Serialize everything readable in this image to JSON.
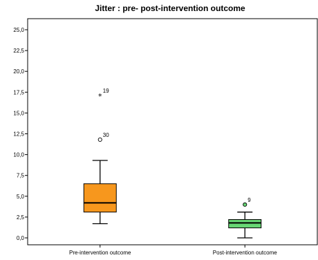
{
  "chart_data": {
    "type": "box",
    "title": "Jitter : pre- post-intervention outcome",
    "xlabel": "",
    "ylabel": "",
    "ylim": [
      0,
      25
    ],
    "y_ticks": [
      "0,0",
      "2,5",
      "5,0",
      "7,5",
      "10,0",
      "12,5",
      "15,0",
      "17,5",
      "20,0",
      "22,5",
      "25,0"
    ],
    "categories": [
      "Pre-intervention outcome",
      "Post-intervention outcome"
    ],
    "boxes": [
      {
        "category": "Pre-intervention outcome",
        "whisker_low": 1.7,
        "q1": 3.1,
        "median": 4.2,
        "q3": 6.5,
        "whisker_high": 9.3,
        "color": "#f7971d",
        "outliers": [
          {
            "value": 11.8,
            "label": "30",
            "marker": "circle"
          },
          {
            "value": 17.1,
            "label": "19",
            "marker": "star"
          }
        ]
      },
      {
        "category": "Post-intervention outcome",
        "whisker_low": 0.0,
        "q1": 1.2,
        "median": 1.8,
        "q3": 2.2,
        "whisker_high": 3.1,
        "color": "#67d674",
        "outliers": [
          {
            "value": 4.0,
            "label": "9",
            "marker": "circle"
          }
        ]
      }
    ],
    "grid": false,
    "legend": "none"
  }
}
